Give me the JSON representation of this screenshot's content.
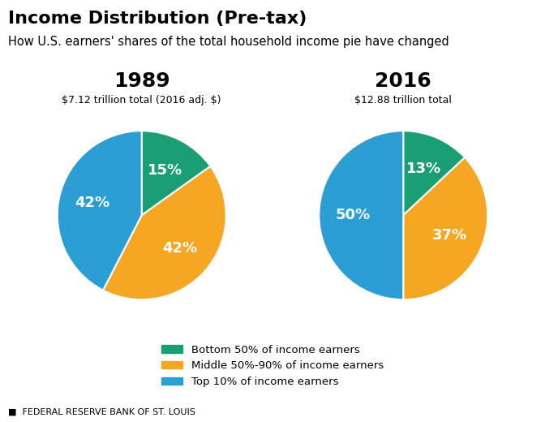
{
  "title": "Income Distribution (Pre-tax)",
  "subtitle": "How U.S. earners' shares of the total household income pie have changed",
  "source": "■  FEDERAL RESERVE BANK OF ST. LOUIS",
  "legend": "lower center",
  "chart_data": [
    {
      "type": "pie",
      "title": "1989",
      "subtitle": "$7.12 trillion total (2016 adj. $)",
      "categories": [
        "Bottom 50% of income earners",
        "Middle 50%-90% of income earners",
        "Top 10% of income earners"
      ],
      "values": [
        15,
        42,
        42
      ],
      "value_labels": [
        "15%",
        "42%",
        "42%"
      ],
      "colors": [
        "#1a9e74",
        "#f5a623",
        "#2b9fd4"
      ],
      "data_labels": true
    },
    {
      "type": "pie",
      "title": "2016",
      "subtitle": "$12.88 trillion total",
      "categories": [
        "Bottom 50% of income earners",
        "Middle 50%-90% of income earners",
        "Top 10% of income earners"
      ],
      "values": [
        13,
        37,
        50
      ],
      "value_labels": [
        "13%",
        "37%",
        "50%"
      ],
      "colors": [
        "#1a9e74",
        "#f5a623",
        "#2b9fd4"
      ],
      "data_labels": true
    }
  ]
}
